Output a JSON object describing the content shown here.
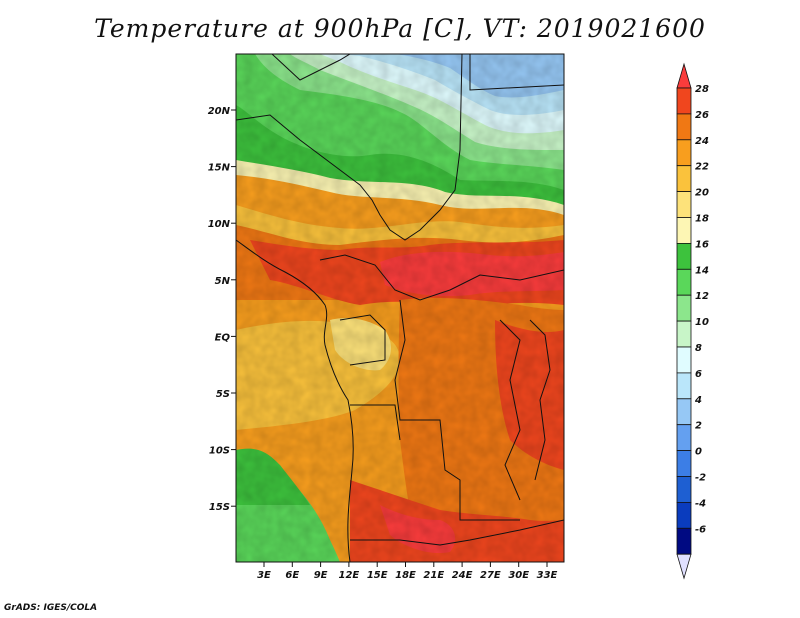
{
  "title": "Temperature at 900hPa [C], VT: 2019021600",
  "credit": "GrADS: IGES/COLA",
  "lat_ticks": [
    "20N",
    "15N",
    "10N",
    "5N",
    "EQ",
    "5S",
    "10S",
    "15S"
  ],
  "lon_ticks": [
    "3E",
    "6E",
    "9E",
    "12E",
    "15E",
    "18E",
    "21E",
    "24E",
    "27E",
    "30E",
    "33E"
  ],
  "colorbar": {
    "levels": [
      "28",
      "26",
      "24",
      "22",
      "20",
      "18",
      "16",
      "14",
      "12",
      "10",
      "8",
      "6",
      "4",
      "2",
      "0",
      "-2",
      "-4",
      "-6"
    ],
    "colors": [
      "#fa3c3c",
      "#f0461e",
      "#f07814",
      "#f89e1e",
      "#fac23c",
      "#fde27a",
      "#fdf6b4",
      "#3dc23d",
      "#5ad75a",
      "#8ce68c",
      "#c8f5c8",
      "#e0fcff",
      "#bae6fa",
      "#96c8f5",
      "#64a0f0",
      "#3c7ee6",
      "#1e5fd2",
      "#0a3cbe",
      "#000a82",
      "#e0e0ff"
    ]
  }
}
